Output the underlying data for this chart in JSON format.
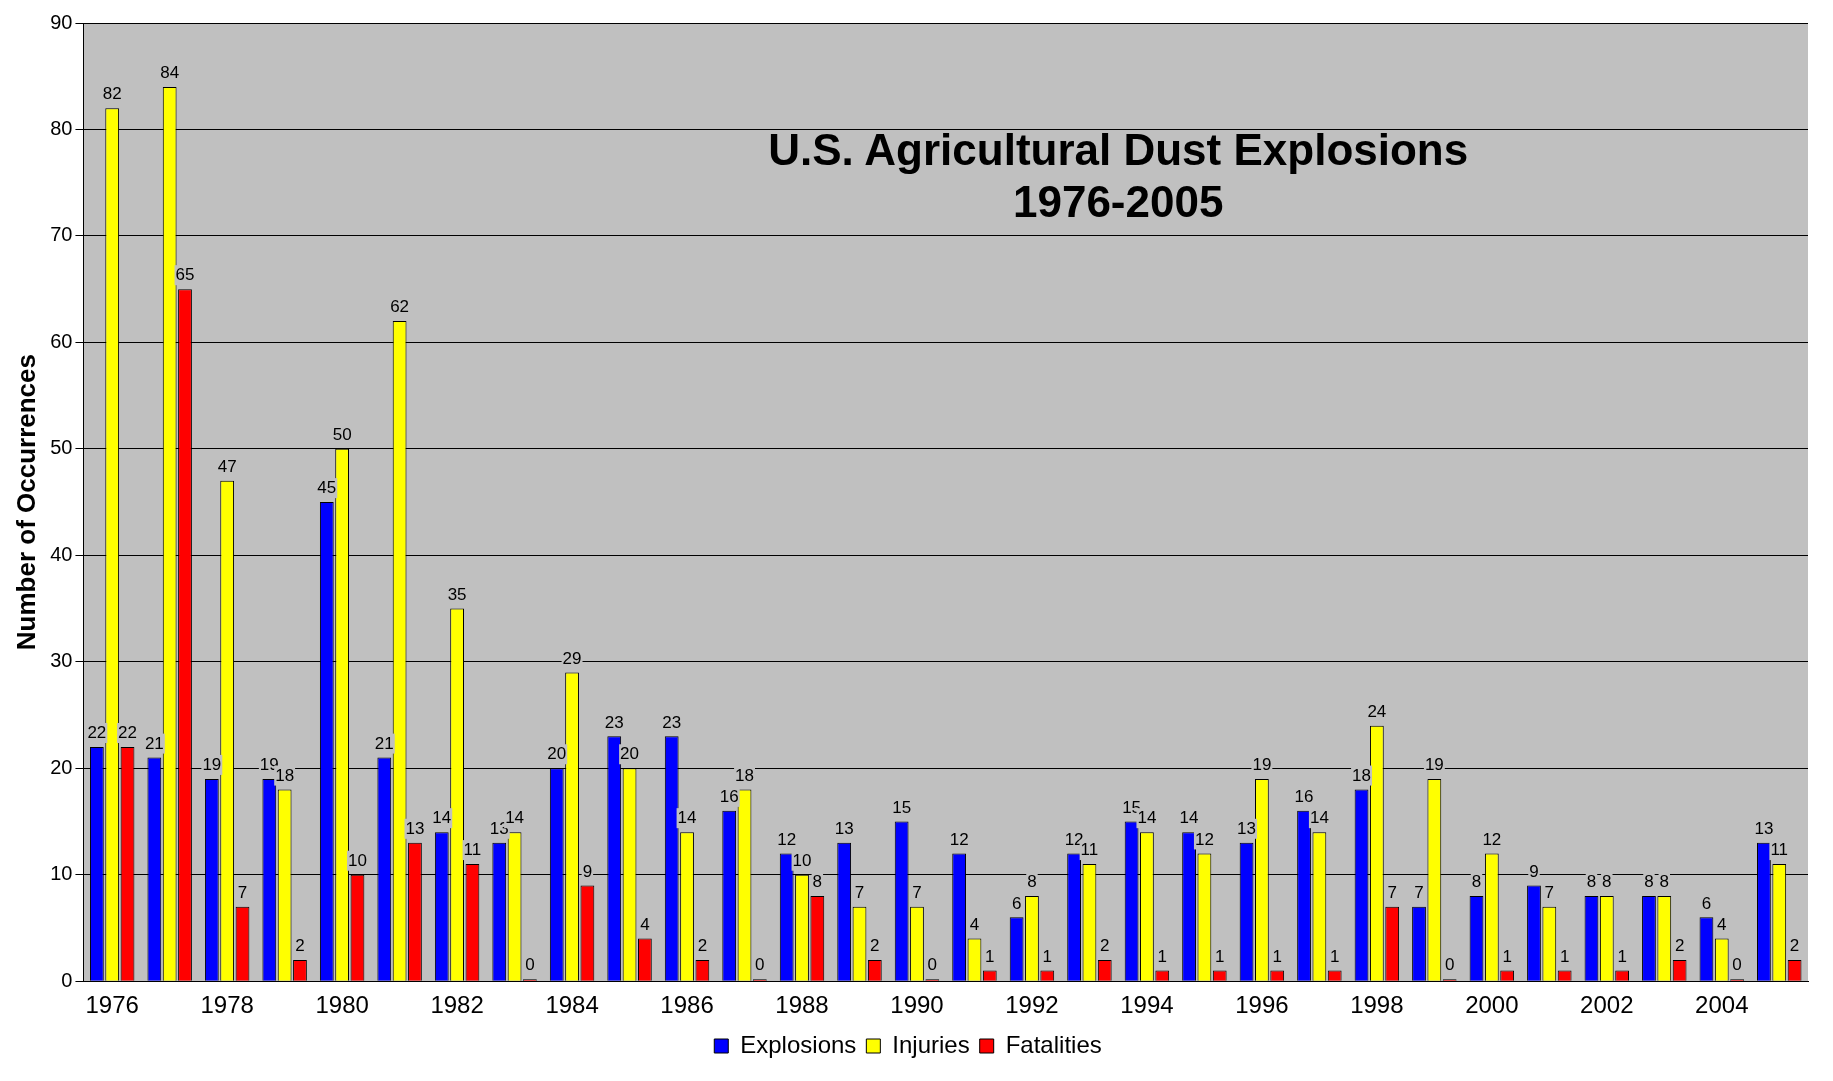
{
  "chart_data": {
    "type": "bar",
    "title": "U.S. Agricultural Dust Explosions",
    "subtitle": "1976-2005",
    "ylabel": "Number of Occurrences",
    "categories": [
      "1976",
      null,
      "1978",
      null,
      "1980",
      null,
      "1982",
      null,
      "1984",
      null,
      "1986",
      null,
      "1988",
      null,
      "1990",
      null,
      "1992",
      null,
      "1994",
      null,
      "1996",
      null,
      "1998",
      null,
      "2000",
      null,
      "2002",
      null,
      "2004",
      null
    ],
    "series": [
      {
        "name": "Explosions",
        "color": "#0000ff",
        "values": [
          22,
          21,
          19,
          19,
          45,
          21,
          14,
          13,
          20,
          23,
          23,
          16,
          12,
          13,
          15,
          12,
          6,
          12,
          15,
          14,
          13,
          16,
          18,
          7,
          8,
          9,
          8,
          8,
          6,
          13
        ]
      },
      {
        "name": "Injuries",
        "color": "#ffff00",
        "values": [
          82,
          84,
          47,
          18,
          50,
          62,
          35,
          14,
          29,
          20,
          14,
          18,
          10,
          7,
          7,
          4,
          8,
          11,
          14,
          12,
          19,
          14,
          24,
          19,
          12,
          7,
          8,
          8,
          4,
          11
        ]
      },
      {
        "name": "Fatalities",
        "color": "#ff0000",
        "values": [
          22,
          65,
          7,
          2,
          10,
          13,
          11,
          0,
          9,
          4,
          2,
          0,
          8,
          2,
          0,
          1,
          1,
          2,
          1,
          1,
          1,
          1,
          7,
          0,
          1,
          1,
          1,
          2,
          0,
          2
        ]
      }
    ],
    "ylim": [
      0,
      90
    ],
    "yticks": [
      0,
      10,
      20,
      30,
      40,
      50,
      60,
      70,
      80,
      90
    ],
    "grid": "y",
    "legend": "bottom",
    "data_labels": true
  }
}
